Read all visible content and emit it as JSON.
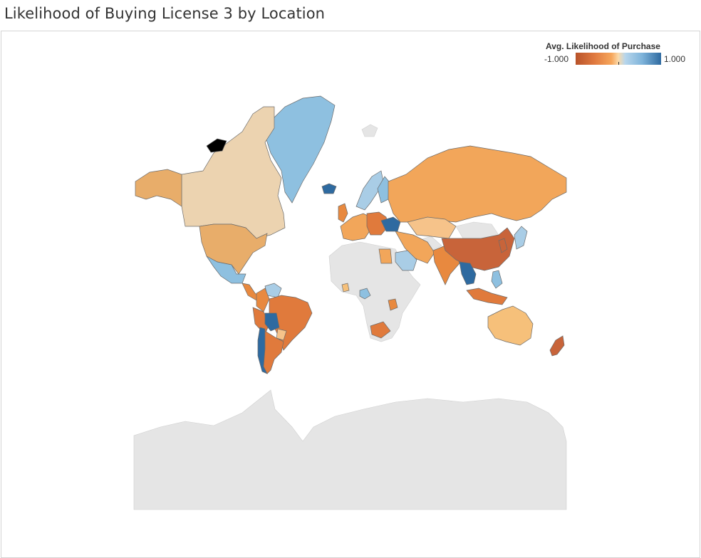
{
  "title": "Likelihood of Buying License 3 by Location",
  "legend": {
    "title": "Avg. Likelihood of Purchase",
    "min_label": "-1.000",
    "max_label": "1.000",
    "min_color": "#b8532a",
    "mid_color": "#fbd9a9",
    "max_color": "#2e6aa0"
  },
  "colors": {
    "no_data": "#e5e5e5",
    "panel_border": "#d4d4d4"
  },
  "regions": [
    {
      "name": "Greenland",
      "color": "#8ec0e0"
    },
    {
      "name": "Canada",
      "color": "#ecd3b0"
    },
    {
      "name": "Alaska",
      "color": "#e8ad6a"
    },
    {
      "name": "United States",
      "color": "#e8ad6a"
    },
    {
      "name": "Mexico",
      "color": "#8ec0e0"
    },
    {
      "name": "Central America",
      "color": "#e8893f"
    },
    {
      "name": "Colombia",
      "color": "#e8893f"
    },
    {
      "name": "Venezuela",
      "color": "#a9cde6"
    },
    {
      "name": "Peru",
      "color": "#e07a3c"
    },
    {
      "name": "Brazil",
      "color": "#e07a3c"
    },
    {
      "name": "Bolivia",
      "color": "#2e6aa0"
    },
    {
      "name": "Chile",
      "color": "#2e6aa0"
    },
    {
      "name": "Argentina",
      "color": "#e07a3c"
    },
    {
      "name": "Paraguay",
      "color": "#f6c38a"
    },
    {
      "name": "Iceland",
      "color": "#2e6aa0"
    },
    {
      "name": "United Kingdom",
      "color": "#e8893f"
    },
    {
      "name": "Scandinavia",
      "color": "#a9cde6"
    },
    {
      "name": "Finland",
      "color": "#8ec0e0"
    },
    {
      "name": "Western Europe",
      "color": "#f2a65a"
    },
    {
      "name": "Eastern Europe",
      "color": "#e07a3c"
    },
    {
      "name": "Ukraine",
      "color": "#2e6aa0"
    },
    {
      "name": "Russia",
      "color": "#f2a65a"
    },
    {
      "name": "Kazakhstan",
      "color": "#f6c38a"
    },
    {
      "name": "Middle East",
      "color": "#f2a65a"
    },
    {
      "name": "Saudi Arabia",
      "color": "#a9cde6"
    },
    {
      "name": "Egypt",
      "color": "#f2a65a"
    },
    {
      "name": "India",
      "color": "#e8893f"
    },
    {
      "name": "China",
      "color": "#c8643a"
    },
    {
      "name": "Japan",
      "color": "#a9cde6"
    },
    {
      "name": "Korea",
      "color": "#c8643a"
    },
    {
      "name": "Southeast Asia",
      "color": "#2e6aa0"
    },
    {
      "name": "Indonesia",
      "color": "#e07a3c"
    },
    {
      "name": "Philippines",
      "color": "#8ec0e0"
    },
    {
      "name": "Australia",
      "color": "#f6c07a"
    },
    {
      "name": "New Zealand",
      "color": "#c8643a"
    },
    {
      "name": "Nigeria",
      "color": "#8ec0e0"
    },
    {
      "name": "Kenya",
      "color": "#e8893f"
    },
    {
      "name": "South Africa",
      "color": "#e07a3c"
    },
    {
      "name": "Ghana",
      "color": "#f6c07a"
    }
  ]
}
